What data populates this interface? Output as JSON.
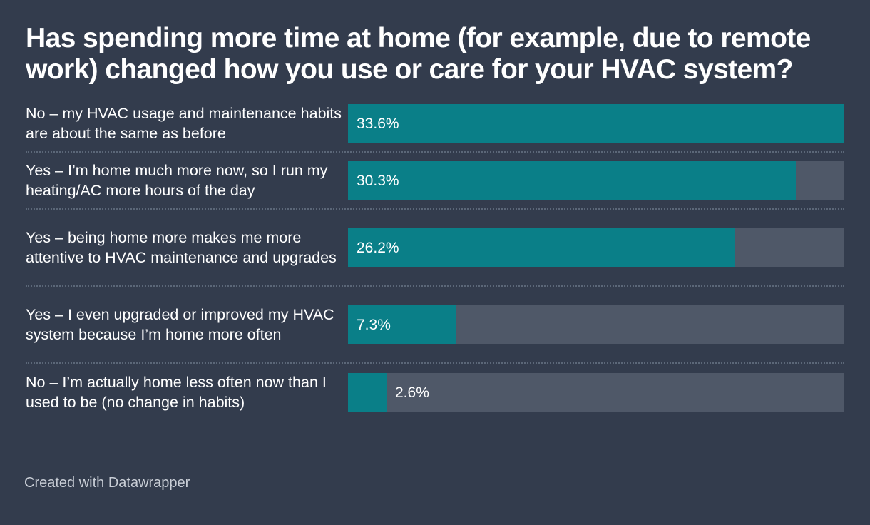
{
  "colors": {
    "background": "#333c4d",
    "bar": "#0a7f88",
    "track": "#4f5868",
    "value_label": "#ffffff"
  },
  "chart_data": {
    "type": "bar",
    "orientation": "horizontal",
    "title": "Has spending more time at home (for example, due to remote work) changed how you use or care for your HVAC system?",
    "categories": [
      "No – my HVAC usage and maintenance habits are about the same as before",
      "Yes – I’m home much more now, so I run my heating/AC more hours of the day",
      "Yes – being home more makes me more attentive to HVAC maintenance and upgrades",
      "Yes – I even upgraded or improved my HVAC system because I’m home more often",
      "No – I’m actually home less often now than I used to be (no change in habits)"
    ],
    "values": [
      33.6,
      30.3,
      26.2,
      7.3,
      2.6
    ],
    "value_labels": [
      "33.6%",
      "30.3%",
      "26.2%",
      "7.3%",
      "2.6%"
    ],
    "xlim": [
      0,
      33.6
    ],
    "grid": false,
    "legend": "none"
  },
  "footer": {
    "credit": "Created with Datawrapper"
  }
}
